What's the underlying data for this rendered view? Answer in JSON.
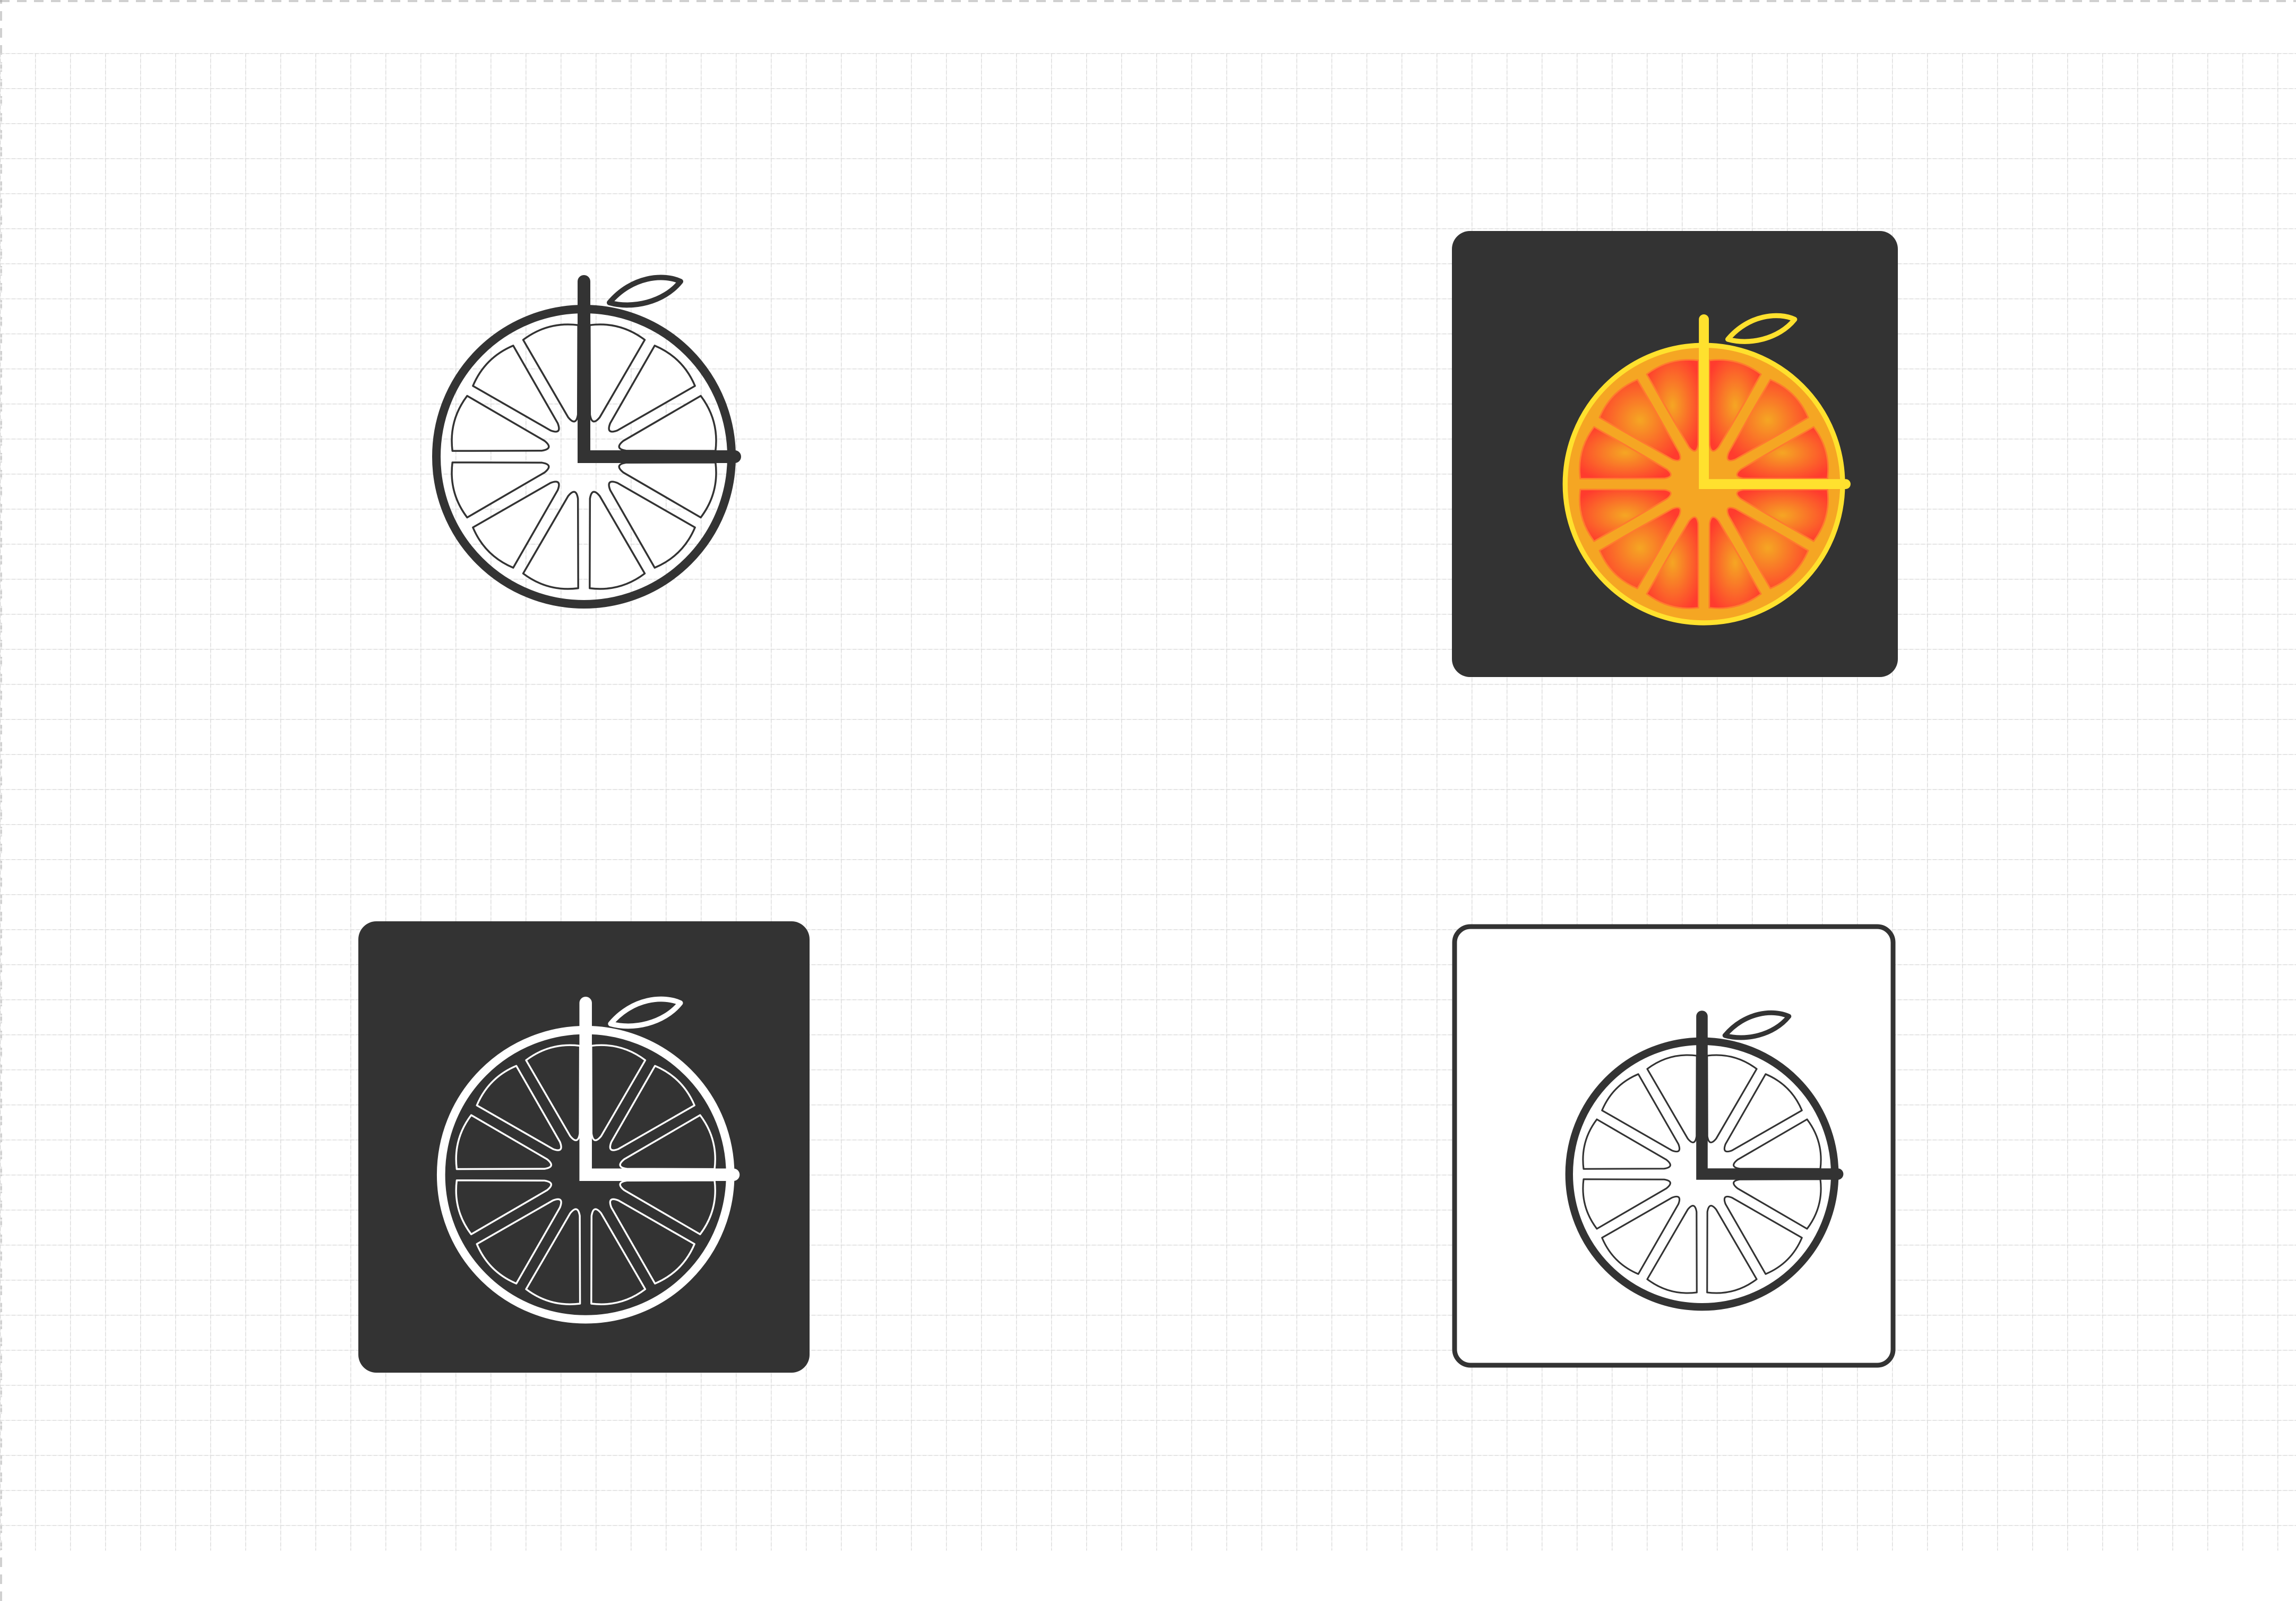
{
  "canvas": {
    "background": "#ffffff",
    "grid_color": "#d9d9d9"
  },
  "logo_variants": [
    {
      "id": "outline-on-light",
      "background": "none",
      "stroke": "#333333",
      "segment_stroke": "#333333",
      "segment_fill": "#ffffff",
      "hands": "#333333"
    },
    {
      "id": "color-on-dark",
      "background": "#333333",
      "rim": "#ffe12e",
      "segment_fill_outer": "#ff3b2e",
      "segment_fill_inner": "#f5a623",
      "hands": "#ffe12e"
    },
    {
      "id": "white-on-dark",
      "background": "#333333",
      "stroke": "#ffffff",
      "segment_stroke": "#ffffff",
      "segment_fill": "#333333",
      "hands": "#ffffff"
    },
    {
      "id": "outline-in-frame",
      "background": "#ffffff",
      "frame": "#333333",
      "stroke": "#333333",
      "segment_stroke": "#333333",
      "segment_fill": "#ffffff",
      "hands": "#333333"
    }
  ],
  "icons": {
    "mark": "orange-slice-clock-icon",
    "leaf": "leaf-icon"
  }
}
